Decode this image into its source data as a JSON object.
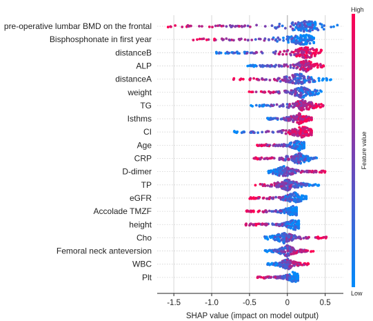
{
  "chart_data": {
    "type": "scatter",
    "title": "",
    "xlabel": "SHAP value (impact on model output)",
    "xlim": [
      -1.72,
      0.74
    ],
    "x_ticks": [
      -1.5,
      -1.0,
      -0.5,
      0,
      0.5
    ],
    "x_tick_labels": [
      "-1.5",
      "-1.0",
      "-0.5",
      "0",
      "0.5"
    ],
    "grid": "vertical",
    "colorbar": {
      "label": "Feature value",
      "high_label": "High",
      "low_label": "Low",
      "high_color": "#ff0052",
      "low_color": "#008bfb",
      "placement": "right"
    },
    "features": [
      {
        "name": "pre-operative lumbar BMD on the frontal",
        "min": -1.62,
        "max": 0.68,
        "center": 0.25,
        "low_side": "right"
      },
      {
        "name": "Bisphosphonate in first year",
        "min": -1.25,
        "max": 0.35,
        "center": 0.2,
        "low_side": "right"
      },
      {
        "name": "distanceB",
        "min": -0.98,
        "max": 0.45,
        "center": 0.25,
        "low_side": "left"
      },
      {
        "name": "ALP",
        "min": -0.55,
        "max": 0.48,
        "center": 0.25,
        "low_side": "left"
      },
      {
        "name": "distanceA",
        "min": -0.72,
        "max": 0.6,
        "center": 0.15,
        "low_side": "right"
      },
      {
        "name": "weight",
        "min": -0.52,
        "max": 0.45,
        "center": 0.2,
        "low_side": "right"
      },
      {
        "name": "TG",
        "min": -0.5,
        "max": 0.5,
        "center": 0.2,
        "low_side": "left"
      },
      {
        "name": "Isthms",
        "min": -0.3,
        "max": 0.32,
        "center": 0.15,
        "low_side": "left"
      },
      {
        "name": "CI",
        "min": -0.75,
        "max": 0.32,
        "center": 0.2,
        "low_side": "left"
      },
      {
        "name": "Age",
        "min": -0.42,
        "max": 0.22,
        "center": 0.15,
        "low_side": "right"
      },
      {
        "name": "CRP",
        "min": -0.45,
        "max": 0.42,
        "center": 0.15,
        "low_side": "right"
      },
      {
        "name": "D-dimer",
        "min": -0.25,
        "max": 0.5,
        "center": -0.05,
        "low_side": "left"
      },
      {
        "name": "TP",
        "min": -0.45,
        "max": 0.42,
        "center": 0.0,
        "low_side": "right"
      },
      {
        "name": "eGFR",
        "min": -0.5,
        "max": 0.25,
        "center": 0.1,
        "low_side": "right"
      },
      {
        "name": "Accolade TMZF",
        "min": -0.55,
        "max": 0.12,
        "center": 0.08,
        "low_side": "right"
      },
      {
        "name": "height",
        "min": -0.55,
        "max": 0.15,
        "center": 0.1,
        "low_side": "right"
      },
      {
        "name": "Cho",
        "min": -0.3,
        "max": 0.52,
        "center": -0.05,
        "low_side": "left"
      },
      {
        "name": "Femoral neck anteversion",
        "min": -0.3,
        "max": 0.35,
        "center": 0.0,
        "low_side": "left"
      },
      {
        "name": "WBC",
        "min": -0.28,
        "max": 0.28,
        "center": 0.0,
        "low_side": "left"
      },
      {
        "name": "Plt",
        "min": -0.4,
        "max": 0.14,
        "center": 0.08,
        "low_side": "right"
      }
    ]
  }
}
